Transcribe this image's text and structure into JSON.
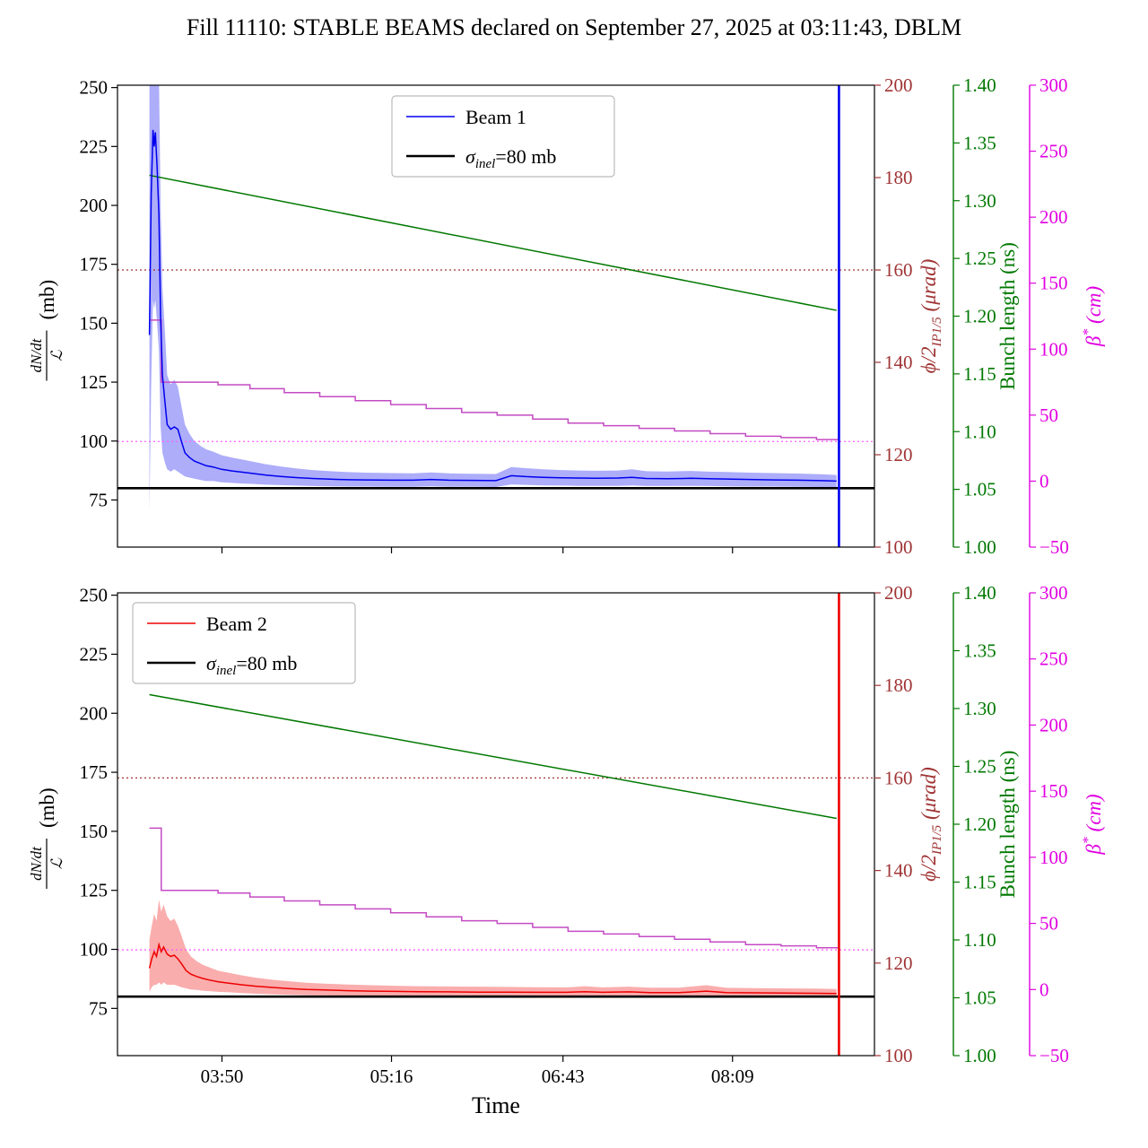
{
  "title": "Fill 11110: STABLE BEAMS declared on September 27, 2025 at 03:11:43, DBLM",
  "xlabel": "Time",
  "x_axis": {
    "units": "time of day (hours)",
    "range": [
      2.95,
      9.35
    ],
    "ticks": [
      {
        "v": 3.8333,
        "l": "03:50"
      },
      {
        "v": 5.2667,
        "l": "05:16"
      },
      {
        "v": 6.7167,
        "l": "06:43"
      },
      {
        "v": 8.15,
        "l": "08:09"
      }
    ]
  },
  "axes": {
    "rate": {
      "label_num": "dN/dt",
      "label_den": "ℒ",
      "label_unit": "(mb)",
      "range": [
        55,
        251
      ],
      "color": "#000000",
      "ticks": [
        {
          "v": 250,
          "l": "250"
        },
        {
          "v": 225,
          "l": "225"
        },
        {
          "v": 200,
          "l": "200"
        },
        {
          "v": 175,
          "l": "175"
        },
        {
          "v": 150,
          "l": "150"
        },
        {
          "v": 125,
          "l": "125"
        },
        {
          "v": 100,
          "l": "100"
        },
        {
          "v": 75,
          "l": "75"
        }
      ]
    },
    "crossing": {
      "label_main": "ϕ/2",
      "label_sub": "IP1/5",
      "label_rest": " (μrad)",
      "range": [
        100,
        200
      ],
      "color": "#a03434",
      "ticks": [
        {
          "v": 200,
          "l": "200"
        },
        {
          "v": 180,
          "l": "180"
        },
        {
          "v": 160,
          "l": "160"
        },
        {
          "v": 140,
          "l": "140"
        },
        {
          "v": 120,
          "l": "120"
        },
        {
          "v": 100,
          "l": "100"
        }
      ]
    },
    "bunch": {
      "label": "Bunch length (ns)",
      "range": [
        1.0,
        1.4
      ],
      "color": "#007800",
      "ticks": [
        {
          "v": 1.4,
          "l": "1.40"
        },
        {
          "v": 1.35,
          "l": "1.35"
        },
        {
          "v": 1.3,
          "l": "1.30"
        },
        {
          "v": 1.25,
          "l": "1.25"
        },
        {
          "v": 1.2,
          "l": "1.20"
        },
        {
          "v": 1.15,
          "l": "1.15"
        },
        {
          "v": 1.1,
          "l": "1.10"
        },
        {
          "v": 1.05,
          "l": "1.05"
        },
        {
          "v": 1.0,
          "l": "1.00"
        }
      ]
    },
    "beta": {
      "label_main": "β",
      "label_sup": "*",
      "label_rest": " (cm)",
      "range": [
        -50,
        300
      ],
      "color": "#e100e1",
      "line_color": "#c44bc4",
      "dotted_color": "#ff5cff",
      "ticks": [
        {
          "v": 300,
          "l": "300"
        },
        {
          "v": 250,
          "l": "250"
        },
        {
          "v": 200,
          "l": "200"
        },
        {
          "v": 150,
          "l": "150"
        },
        {
          "v": 100,
          "l": "100"
        },
        {
          "v": 50,
          "l": "50"
        },
        {
          "v": 0,
          "l": "0"
        },
        {
          "v": -50,
          "l": "−50"
        }
      ]
    }
  },
  "chart_data": [
    {
      "type": "line",
      "subplot": "top",
      "legend": [
        {
          "label": "Beam 1",
          "color": "#0000ee",
          "lw": 1.6
        },
        {
          "label": "σinel=80 mb",
          "rich": {
            "base": "σ",
            "sub": "inel",
            "rest": "=80 mb"
          },
          "color": "#000000",
          "lw": 2.6
        }
      ],
      "beam": {
        "name": "Beam 1",
        "color": "#0000ee",
        "band_opacity": 0.32,
        "units": "mb",
        "end_vline_t": 9.05,
        "points": [
          [
            3.22,
            145,
            70,
            250
          ],
          [
            3.235,
            205,
            125,
            285
          ],
          [
            3.25,
            232,
            160,
            302
          ],
          [
            3.26,
            225,
            156,
            295
          ],
          [
            3.27,
            231,
            160,
            300
          ],
          [
            3.285,
            216,
            150,
            284
          ],
          [
            3.3,
            196,
            138,
            256
          ],
          [
            3.315,
            152,
            106,
            200
          ],
          [
            3.33,
            128,
            95,
            165
          ],
          [
            3.35,
            117,
            91,
            147
          ],
          [
            3.37,
            107,
            88,
            128
          ],
          [
            3.4,
            105,
            87,
            124
          ],
          [
            3.43,
            106,
            88,
            126
          ],
          [
            3.46,
            105,
            87,
            123
          ],
          [
            3.49,
            100,
            86,
            115
          ],
          [
            3.52,
            95,
            85,
            107
          ],
          [
            3.56,
            93,
            84.5,
            103
          ],
          [
            3.6,
            91.5,
            84,
            100
          ],
          [
            3.65,
            90.5,
            83.5,
            98
          ],
          [
            3.7,
            89.5,
            83,
            96.5
          ],
          [
            3.76,
            89,
            83,
            95.5
          ],
          [
            3.83,
            88,
            82.5,
            94
          ],
          [
            3.92,
            87.3,
            82.2,
            93
          ],
          [
            4.0,
            86.8,
            82,
            92.2
          ],
          [
            4.1,
            86.2,
            81.8,
            91.2
          ],
          [
            4.2,
            85.6,
            81.5,
            90.2
          ],
          [
            4.33,
            85,
            81.3,
            89.2
          ],
          [
            4.46,
            84.5,
            81.1,
            88.4
          ],
          [
            4.6,
            84.1,
            80.9,
            87.7
          ],
          [
            4.75,
            83.8,
            80.8,
            87.2
          ],
          [
            4.9,
            83.6,
            80.7,
            86.8
          ],
          [
            5.05,
            83.5,
            80.7,
            86.6
          ],
          [
            5.27,
            83.4,
            80.6,
            86.4
          ],
          [
            5.45,
            83.4,
            80.6,
            86.3
          ],
          [
            5.6,
            83.7,
            80.8,
            86.7
          ],
          [
            5.75,
            83.4,
            80.6,
            86.3
          ],
          [
            5.95,
            83.3,
            80.6,
            86.1
          ],
          [
            6.15,
            83.2,
            80.5,
            86.0
          ],
          [
            6.28,
            85.3,
            81.6,
            89.0
          ],
          [
            6.4,
            84.9,
            81.4,
            88.5
          ],
          [
            6.55,
            84.6,
            81.2,
            88.0
          ],
          [
            6.7,
            84.4,
            81.1,
            87.7
          ],
          [
            6.85,
            84.3,
            81.0,
            87.5
          ],
          [
            7.0,
            84.2,
            81.0,
            87.4
          ],
          [
            7.18,
            84.3,
            81.0,
            87.5
          ],
          [
            7.3,
            84.6,
            81.2,
            88.0
          ],
          [
            7.42,
            84.1,
            80.9,
            87.2
          ],
          [
            7.6,
            84.0,
            80.9,
            87.1
          ],
          [
            7.8,
            84.2,
            81.0,
            87.3
          ],
          [
            7.95,
            84.0,
            80.9,
            87.0
          ],
          [
            8.1,
            83.9,
            80.8,
            86.9
          ],
          [
            8.3,
            83.7,
            80.7,
            86.6
          ],
          [
            8.5,
            83.5,
            80.7,
            86.4
          ],
          [
            8.7,
            83.4,
            80.6,
            86.2
          ],
          [
            8.9,
            83.2,
            80.5,
            85.9
          ],
          [
            9.03,
            83.0,
            80.4,
            85.6
          ]
        ]
      },
      "sigma_inel_mb": 80,
      "crossing_angle_urad": 160,
      "bunch_length_ns": {
        "x": [
          3.22,
          9.03
        ],
        "y": [
          1.322,
          1.205
        ]
      },
      "beta_star_cm": {
        "target": 30,
        "steps": [
          [
            3.22,
            122
          ],
          [
            3.32,
            75
          ],
          [
            3.8,
            73
          ],
          [
            4.07,
            70
          ],
          [
            4.36,
            67
          ],
          [
            4.66,
            64
          ],
          [
            4.96,
            61
          ],
          [
            5.26,
            58
          ],
          [
            5.56,
            55
          ],
          [
            5.86,
            52
          ],
          [
            6.16,
            50
          ],
          [
            6.46,
            47
          ],
          [
            6.76,
            44
          ],
          [
            7.06,
            42
          ],
          [
            7.36,
            40
          ],
          [
            7.66,
            38
          ],
          [
            7.96,
            36
          ],
          [
            8.26,
            34
          ],
          [
            8.56,
            33
          ],
          [
            8.86,
            31.5
          ],
          [
            9.05,
            31.5
          ]
        ]
      }
    },
    {
      "type": "line",
      "subplot": "bottom",
      "legend": [
        {
          "label": "Beam 2",
          "color": "#ee0000",
          "lw": 1.6
        },
        {
          "label": "σinel=80 mb",
          "rich": {
            "base": "σ",
            "sub": "inel",
            "rest": "=80 mb"
          },
          "color": "#000000",
          "lw": 2.6
        }
      ],
      "beam": {
        "name": "Beam 2",
        "color": "#ee0000",
        "band_opacity": 0.32,
        "units": "mb",
        "end_vline_t": 9.05,
        "points": [
          [
            3.22,
            92,
            82,
            104
          ],
          [
            3.24,
            96,
            84,
            110
          ],
          [
            3.26,
            99,
            85,
            115
          ],
          [
            3.28,
            97,
            85,
            112
          ],
          [
            3.3,
            102,
            86,
            121
          ],
          [
            3.32,
            99,
            85,
            116
          ],
          [
            3.34,
            101,
            86,
            119
          ],
          [
            3.37,
            98,
            85,
            114
          ],
          [
            3.4,
            97,
            85,
            112
          ],
          [
            3.43,
            97.5,
            85,
            113
          ],
          [
            3.46,
            96,
            84.5,
            110
          ],
          [
            3.49,
            94,
            84,
            106
          ],
          [
            3.53,
            91,
            83.5,
            100
          ],
          [
            3.57,
            89.5,
            83,
            97
          ],
          [
            3.62,
            88.5,
            82.8,
            95
          ],
          [
            3.67,
            87.7,
            82.5,
            93.5
          ],
          [
            3.73,
            87,
            82.3,
            92.3
          ],
          [
            3.8,
            86.3,
            82,
            91
          ],
          [
            3.9,
            85.6,
            81.8,
            90
          ],
          [
            4.0,
            85,
            81.5,
            89
          ],
          [
            4.12,
            84.4,
            81.2,
            88
          ],
          [
            4.25,
            83.9,
            81,
            87.2
          ],
          [
            4.4,
            83.4,
            80.8,
            86.5
          ],
          [
            4.55,
            83,
            80.6,
            85.9
          ],
          [
            4.7,
            82.8,
            80.5,
            85.5
          ],
          [
            4.9,
            82.5,
            80.4,
            85.1
          ],
          [
            5.1,
            82.3,
            80.3,
            84.8
          ],
          [
            5.3,
            82.2,
            80.3,
            84.6
          ],
          [
            5.5,
            82.1,
            80.2,
            84.4
          ],
          [
            5.75,
            82.0,
            80.2,
            84.3
          ],
          [
            6.0,
            81.9,
            80.1,
            84.2
          ],
          [
            6.25,
            81.9,
            80.1,
            84.1
          ],
          [
            6.5,
            81.8,
            80.1,
            84.0
          ],
          [
            6.75,
            81.8,
            80.0,
            83.9
          ],
          [
            6.9,
            82.1,
            80.2,
            84.4
          ],
          [
            7.05,
            81.8,
            80.0,
            83.9
          ],
          [
            7.28,
            82.0,
            80.1,
            84.2
          ],
          [
            7.45,
            81.7,
            80.0,
            83.8
          ],
          [
            7.7,
            81.7,
            80.0,
            83.8
          ],
          [
            7.93,
            82.3,
            80.2,
            84.8
          ],
          [
            8.1,
            81.7,
            79.9,
            83.7
          ],
          [
            8.35,
            81.6,
            79.9,
            83.6
          ],
          [
            8.6,
            81.5,
            79.8,
            83.5
          ],
          [
            8.85,
            81.4,
            79.8,
            83.4
          ],
          [
            9.03,
            81.3,
            79.7,
            83.2
          ]
        ]
      },
      "sigma_inel_mb": 80,
      "crossing_angle_urad": 160,
      "bunch_length_ns": {
        "x": [
          3.22,
          9.03
        ],
        "y": [
          1.312,
          1.205
        ]
      },
      "beta_star_cm": {
        "target": 30,
        "steps": [
          [
            3.22,
            122
          ],
          [
            3.32,
            75
          ],
          [
            3.8,
            73
          ],
          [
            4.07,
            70
          ],
          [
            4.36,
            67
          ],
          [
            4.66,
            64
          ],
          [
            4.96,
            61
          ],
          [
            5.26,
            58
          ],
          [
            5.56,
            55
          ],
          [
            5.86,
            52
          ],
          [
            6.16,
            50
          ],
          [
            6.46,
            47
          ],
          [
            6.76,
            44
          ],
          [
            7.06,
            42
          ],
          [
            7.36,
            40
          ],
          [
            7.66,
            38
          ],
          [
            7.96,
            36
          ],
          [
            8.26,
            34
          ],
          [
            8.56,
            33
          ],
          [
            8.86,
            31.5
          ],
          [
            9.05,
            31.5
          ]
        ]
      }
    }
  ]
}
